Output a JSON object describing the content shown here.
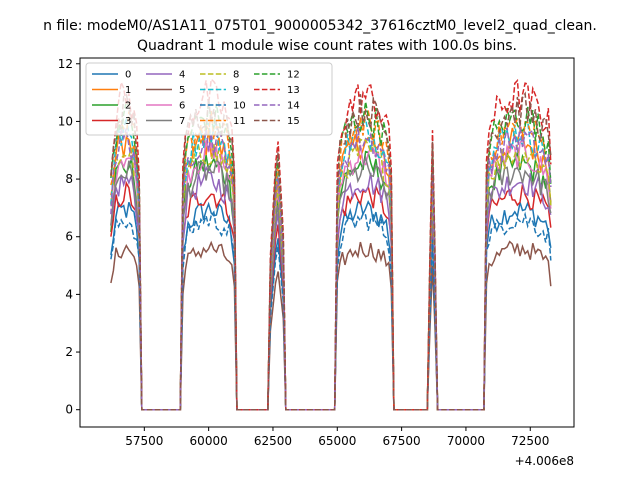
{
  "chart_data": {
    "type": "line",
    "suptitle": "n file: modeM0/AS1A11_075T01_9000005342_37616cztM0_level2_quad_clean.",
    "title": "Quadrant 1 module wise count rates with 100.0s bins.",
    "xlabel": "",
    "ylabel": "",
    "x_offset_label": "+4.006e8",
    "xlim": [
      55000,
      74200
    ],
    "ylim": [
      -0.6,
      12.2
    ],
    "x_ticks": [
      57500,
      60000,
      62500,
      65000,
      67500,
      70000,
      72500
    ],
    "y_ticks": [
      0,
      2,
      4,
      6,
      8,
      10,
      12
    ],
    "grid": false,
    "legend": {
      "placement": "top-left",
      "columns": 4
    },
    "segments": [
      {
        "start": 56200,
        "end": 57300,
        "kind": "plateau"
      },
      {
        "start": 59000,
        "end": 61000,
        "kind": "plateau"
      },
      {
        "start": 62400,
        "end": 62950,
        "kind": "spike"
      },
      {
        "start": 65000,
        "end": 67100,
        "kind": "plateau"
      },
      {
        "start": 68600,
        "end": 68800,
        "kind": "spike"
      },
      {
        "start": 70750,
        "end": 73350,
        "kind": "plateau"
      }
    ],
    "series": [
      {
        "name": "0",
        "color": "#1f77b4",
        "style": "solid",
        "level": 6.2
      },
      {
        "name": "1",
        "color": "#ff7f0e",
        "style": "solid",
        "level": 8.3
      },
      {
        "name": "2",
        "color": "#2ca02c",
        "style": "solid",
        "level": 7.6
      },
      {
        "name": "3",
        "color": "#d62728",
        "style": "solid",
        "level": 6.7
      },
      {
        "name": "4",
        "color": "#9467bd",
        "style": "solid",
        "level": 7.1
      },
      {
        "name": "5",
        "color": "#8c564b",
        "style": "solid",
        "level": 5.0
      },
      {
        "name": "6",
        "color": "#e377c2",
        "style": "solid",
        "level": 7.9
      },
      {
        "name": "7",
        "color": "#7f7f7f",
        "style": "solid",
        "level": 7.4
      },
      {
        "name": "8",
        "color": "#bcbd22",
        "style": "dashed",
        "level": 8.0
      },
      {
        "name": "9",
        "color": "#17becf",
        "style": "dashed",
        "level": 8.6
      },
      {
        "name": "10",
        "color": "#1f77b4",
        "style": "dashed",
        "level": 5.9
      },
      {
        "name": "11",
        "color": "#ff7f0e",
        "style": "dashed",
        "level": 8.8
      },
      {
        "name": "12",
        "color": "#2ca02c",
        "style": "dashed",
        "level": 9.1
      },
      {
        "name": "13",
        "color": "#d62728",
        "style": "dashed",
        "level": 9.7
      },
      {
        "name": "14",
        "color": "#9467bd",
        "style": "dashed",
        "level": 8.4
      },
      {
        "name": "15",
        "color": "#8c564b",
        "style": "dashed",
        "level": 9.3
      }
    ]
  }
}
